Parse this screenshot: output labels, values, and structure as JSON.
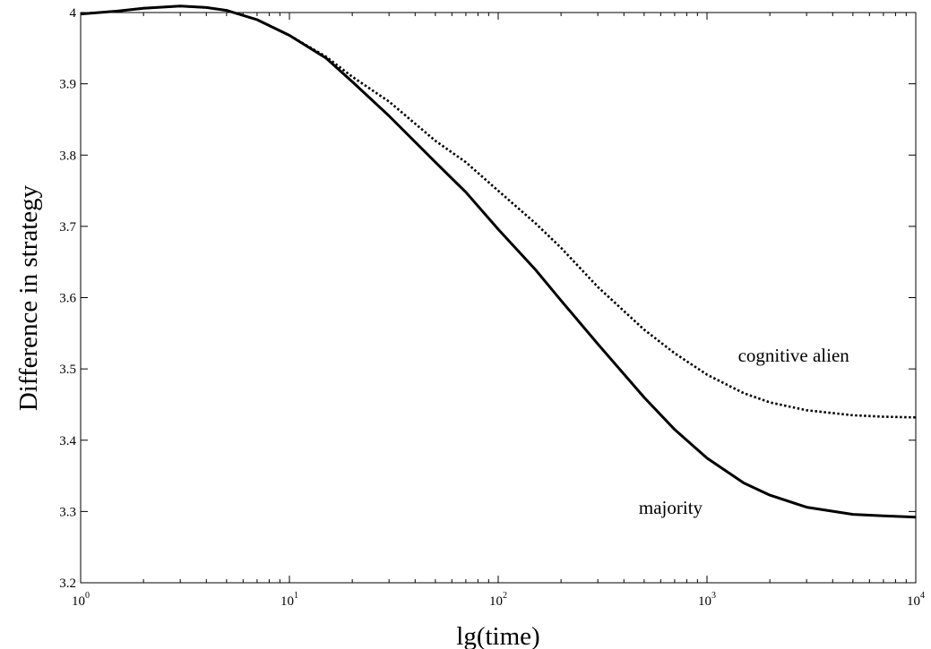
{
  "chart_data": {
    "type": "line",
    "title": "",
    "xlabel": "lg(time)",
    "ylabel": "Difference in strategy",
    "x_scale": "log",
    "xlim": [
      1,
      10000
    ],
    "ylim": [
      3.2,
      4.0
    ],
    "x_ticks": [
      {
        "value": 1,
        "base": "10",
        "exp": "0"
      },
      {
        "value": 10,
        "base": "10",
        "exp": "1"
      },
      {
        "value": 100,
        "base": "10",
        "exp": "2"
      },
      {
        "value": 1000,
        "base": "10",
        "exp": "3"
      },
      {
        "value": 10000,
        "base": "10",
        "exp": "4"
      }
    ],
    "y_ticks": [
      {
        "value": 3.2,
        "label": "3.2"
      },
      {
        "value": 3.3,
        "label": "3.3"
      },
      {
        "value": 3.4,
        "label": "3.4"
      },
      {
        "value": 3.5,
        "label": "3.5"
      },
      {
        "value": 3.6,
        "label": "3.6"
      },
      {
        "value": 3.7,
        "label": "3.7"
      },
      {
        "value": 3.8,
        "label": "3.8"
      },
      {
        "value": 3.9,
        "label": "3.9"
      },
      {
        "value": 4.0,
        "label": "4"
      }
    ],
    "grid": false,
    "legend": "none",
    "series": [
      {
        "name": "majority",
        "style": "solid",
        "color": "#000000",
        "x": [
          1,
          1.5,
          2,
          3,
          4,
          5,
          7,
          10,
          15,
          20,
          30,
          50,
          70,
          100,
          150,
          200,
          300,
          500,
          700,
          1000,
          1500,
          2000,
          3000,
          5000,
          7000,
          10000
        ],
        "y": [
          3.998,
          4.002,
          4.006,
          4.009,
          4.007,
          4.003,
          3.99,
          3.968,
          3.936,
          3.903,
          3.855,
          3.79,
          3.748,
          3.696,
          3.64,
          3.596,
          3.535,
          3.46,
          3.415,
          3.375,
          3.34,
          3.323,
          3.306,
          3.296,
          3.294,
          3.292
        ]
      },
      {
        "name": "cognitive alien",
        "style": "dotted",
        "color": "#000000",
        "x": [
          1,
          1.5,
          2,
          3,
          4,
          5,
          7,
          10,
          15,
          20,
          30,
          50,
          70,
          100,
          150,
          200,
          300,
          500,
          700,
          1000,
          1500,
          2000,
          3000,
          5000,
          7000,
          10000
        ],
        "y": [
          3.998,
          4.002,
          4.006,
          4.009,
          4.007,
          4.003,
          3.99,
          3.968,
          3.938,
          3.91,
          3.875,
          3.82,
          3.79,
          3.75,
          3.705,
          3.67,
          3.615,
          3.555,
          3.522,
          3.492,
          3.466,
          3.453,
          3.442,
          3.435,
          3.433,
          3.432
        ]
      }
    ],
    "annotations": [
      {
        "text": "cognitive alien",
        "x": 2600,
        "y": 3.51
      },
      {
        "text": "majority",
        "x": 670,
        "y": 3.297
      }
    ]
  }
}
